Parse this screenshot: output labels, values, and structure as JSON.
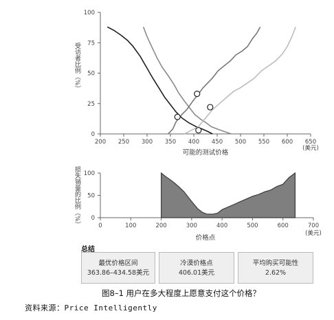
{
  "chart_data": [
    {
      "type": "line",
      "xlabel": "可能的测试价格",
      "ylabel": "受访者比例（%）",
      "xunit": "(美元)",
      "xlim": [
        200,
        650
      ],
      "ylim": [
        0,
        100
      ],
      "xticks": [
        "200",
        "250",
        "300",
        "350",
        "400",
        "450",
        "500",
        "550",
        "600",
        "650"
      ],
      "yticks": [
        "0",
        "25",
        "50",
        "75",
        "100"
      ],
      "grid": false,
      "series": [
        {
          "color": "#1e1e1e",
          "points": [
            [
              215,
              88
            ],
            [
              230,
              85
            ],
            [
              245,
              81
            ],
            [
              258,
              77
            ],
            [
              270,
              72
            ],
            [
              285,
              64
            ],
            [
              300,
              54
            ],
            [
              312,
              46
            ],
            [
              325,
              38
            ],
            [
              338,
              30
            ],
            [
              350,
              24
            ],
            [
              362,
              18
            ],
            [
              375,
              13
            ],
            [
              390,
              9
            ],
            [
              405,
              6
            ],
            [
              418,
              4
            ],
            [
              430,
              2
            ],
            [
              440,
              0
            ]
          ]
        },
        {
          "color": "#8a8a8a",
          "points": [
            [
              292,
              88
            ],
            [
              300,
              80
            ],
            [
              312,
              70
            ],
            [
              322,
              62
            ],
            [
              332,
              55
            ],
            [
              345,
              48
            ],
            [
              357,
              41
            ],
            [
              367,
              34
            ],
            [
              378,
              28
            ],
            [
              390,
              22
            ],
            [
              402,
              16
            ],
            [
              415,
              12
            ],
            [
              427,
              9
            ],
            [
              437,
              6
            ],
            [
              450,
              4
            ],
            [
              465,
              2
            ],
            [
              480,
              0
            ]
          ]
        },
        {
          "color": "#777777",
          "points": [
            [
              345,
              0
            ],
            [
              355,
              4
            ],
            [
              362,
              10
            ],
            [
              372,
              15
            ],
            [
              385,
              20
            ],
            [
              398,
              27
            ],
            [
              410,
              33
            ],
            [
              420,
              38
            ],
            [
              430,
              42
            ],
            [
              440,
              46
            ],
            [
              452,
              52
            ],
            [
              465,
              56
            ],
            [
              478,
              60
            ],
            [
              490,
              65
            ],
            [
              503,
              68
            ],
            [
              515,
              72
            ],
            [
              525,
              78
            ],
            [
              535,
              83
            ],
            [
              542,
              88
            ]
          ]
        },
        {
          "color": "#bcbcbc",
          "points": [
            [
              380,
              0
            ],
            [
              395,
              3
            ],
            [
              410,
              6
            ],
            [
              425,
              13
            ],
            [
              440,
              20
            ],
            [
              455,
              25
            ],
            [
              470,
              30
            ],
            [
              485,
              35
            ],
            [
              500,
              38
            ],
            [
              515,
              42
            ],
            [
              530,
              46
            ],
            [
              545,
              52
            ],
            [
              560,
              56
            ],
            [
              575,
              60
            ],
            [
              590,
              66
            ],
            [
              600,
              72
            ],
            [
              610,
              80
            ],
            [
              618,
              88
            ]
          ]
        }
      ],
      "markers": [
        [
          365,
          14
        ],
        [
          407,
          33
        ],
        [
          435,
          22
        ],
        [
          410,
          3
        ]
      ]
    },
    {
      "type": "area",
      "xlabel": "价格点",
      "ylabel": "损失销量的比例（%）",
      "xunit": "(美元)",
      "xlim": [
        0,
        700
      ],
      "ylim": [
        0,
        100
      ],
      "xticks": [
        "0",
        "100",
        "200",
        "300",
        "400",
        "500",
        "600",
        "700"
      ],
      "yticks": [
        "0",
        "50",
        "100"
      ],
      "grid": false,
      "color": "#7f7f7f",
      "points": [
        [
          200,
          100
        ],
        [
          215,
          92
        ],
        [
          230,
          85
        ],
        [
          245,
          77
        ],
        [
          260,
          68
        ],
        [
          275,
          58
        ],
        [
          290,
          45
        ],
        [
          305,
          32
        ],
        [
          320,
          20
        ],
        [
          335,
          12
        ],
        [
          350,
          8
        ],
        [
          370,
          8
        ],
        [
          385,
          10
        ],
        [
          400,
          18
        ],
        [
          420,
          24
        ],
        [
          440,
          30
        ],
        [
          460,
          36
        ],
        [
          480,
          42
        ],
        [
          500,
          48
        ],
        [
          520,
          52
        ],
        [
          540,
          58
        ],
        [
          560,
          62
        ],
        [
          580,
          70
        ],
        [
          600,
          75
        ],
        [
          620,
          90
        ],
        [
          640,
          100
        ]
      ]
    }
  ],
  "summary": {
    "title": "总结",
    "boxes": [
      {
        "label": "最优价格区间",
        "value": "363.86–434.58美元"
      },
      {
        "label": "冷漠价格点",
        "value": "406.01美元"
      },
      {
        "label": "平均购买可能性",
        "value": "2.62%"
      }
    ]
  },
  "caption": "图8–1 用户在多大程度上愿意支付这个价格？",
  "source": "资料来源：Price Intelligently"
}
